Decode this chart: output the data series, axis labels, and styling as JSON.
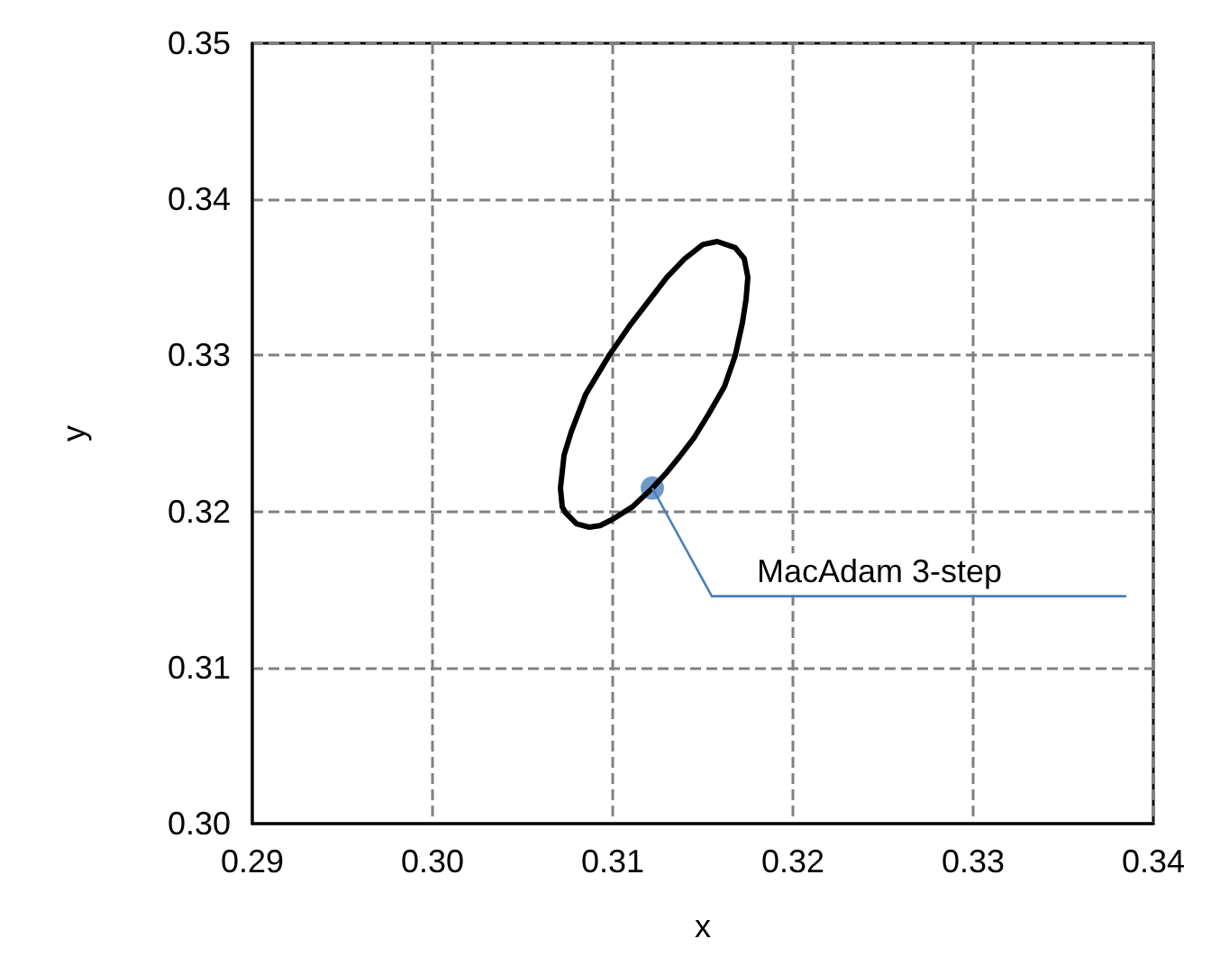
{
  "chart_data": {
    "type": "scatter",
    "xlabel": "x",
    "ylabel": "y",
    "xlim": [
      0.29,
      0.34
    ],
    "xticks": [
      0.29,
      {
        "value": 0.3,
        "label": "0.30"
      },
      0.31,
      0.32,
      0.33,
      0.34
    ],
    "ylim": [
      0.3,
      0.35
    ],
    "yticks": [
      {
        "value": 0.3,
        "label": "0.30"
      },
      0.31,
      0.32,
      0.33,
      0.34,
      0.35
    ],
    "grid": true,
    "marker": "circle",
    "series": [
      {
        "color": "#4a7ebb",
        "x": [
          0.3122
        ],
        "values": [
          0.3215
        ]
      }
    ],
    "annotations": [
      {
        "text": "MacAdam 3-step",
        "x": 0.3122,
        "y": 0.3215
      }
    ]
  }
}
